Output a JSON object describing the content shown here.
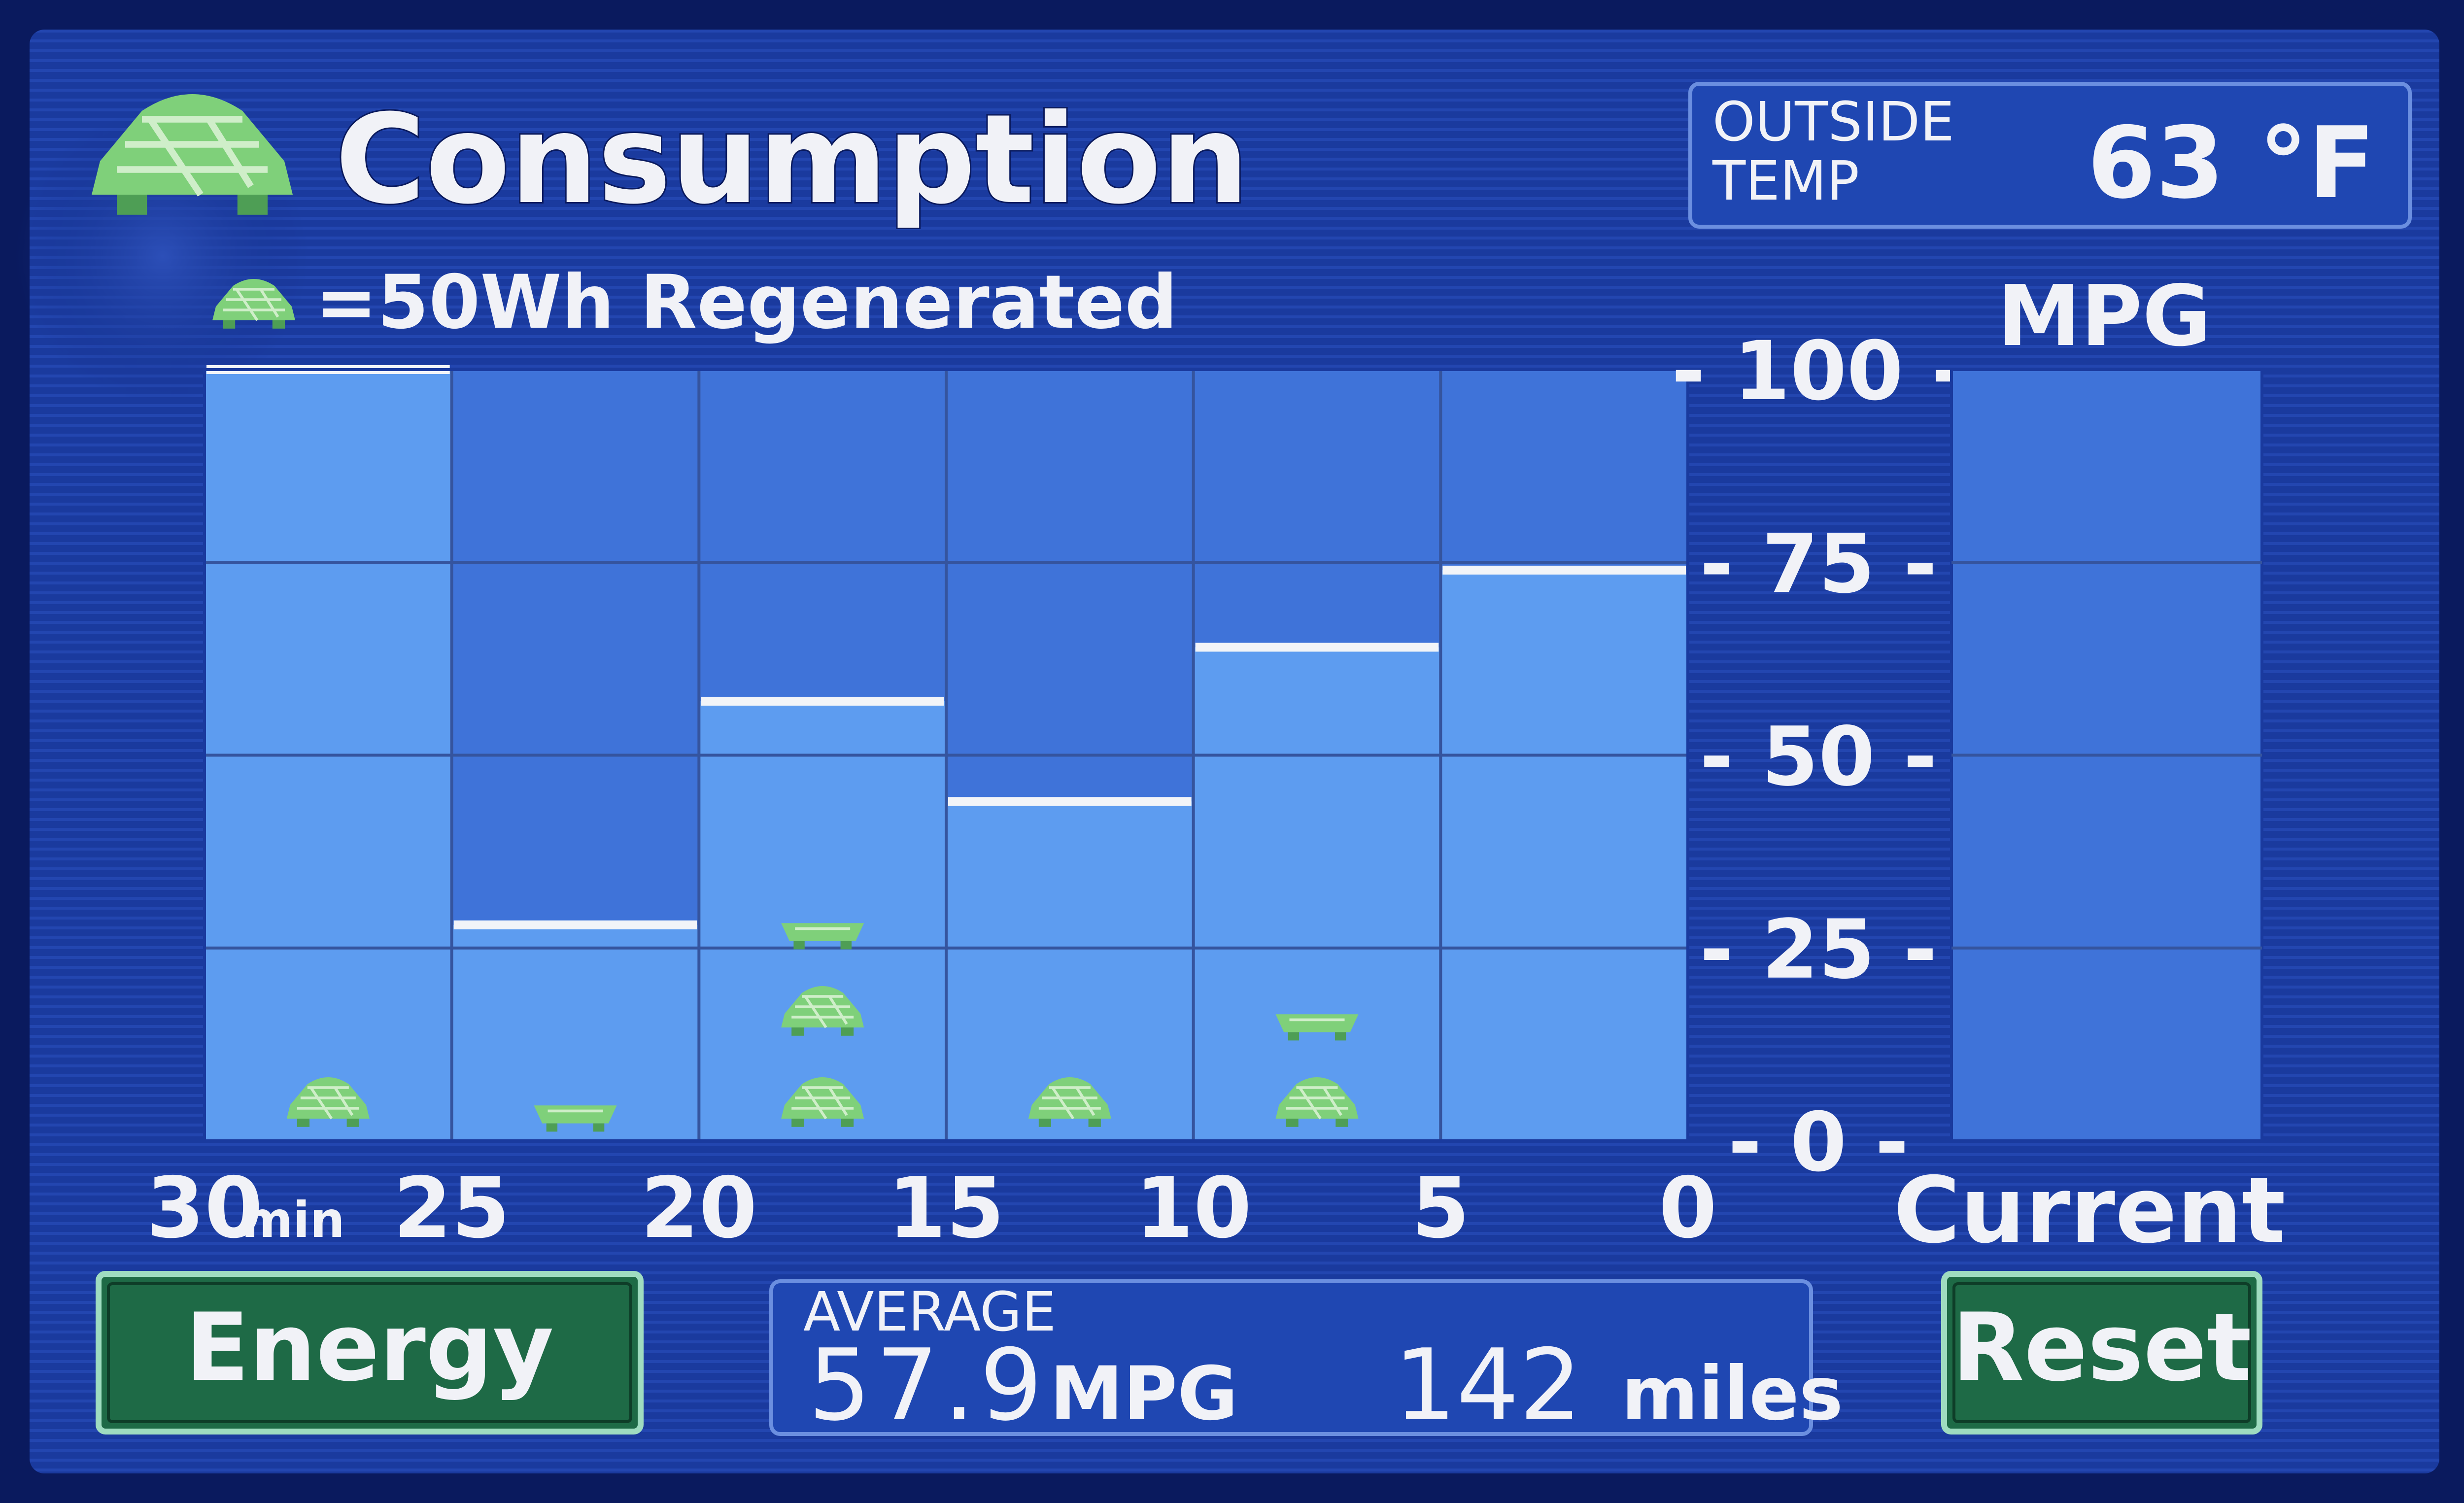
{
  "header": {
    "title": "Consumption",
    "legend": "=50Wh Regenerated",
    "outside_label_1": "OUTSIDE",
    "outside_label_2": "TEMP",
    "outside_value": "63 °F"
  },
  "chart_data": {
    "type": "bar",
    "categories": [
      "30-25",
      "25-20",
      "20-15",
      "15-10",
      "10-5",
      "5-0"
    ],
    "values": [
      100,
      28,
      57,
      44,
      64,
      74
    ],
    "regen_icons": [
      1,
      0.5,
      2.5,
      1,
      1.5,
      0
    ],
    "current_value": 0,
    "ylabel": "MPG",
    "ylim": [
      0,
      100
    ],
    "y_ticks": [
      100,
      75,
      50,
      25,
      0
    ],
    "x_ticks": [
      "30",
      "25",
      "20",
      "15",
      "10",
      "5",
      "0"
    ],
    "x_unit": "min",
    "current_label": "Current"
  },
  "footer": {
    "energy_label": "Energy",
    "average_label": "AVERAGE",
    "average_value": "57.9",
    "average_unit": "MPG",
    "miles_value": "142",
    "miles_unit": "miles",
    "reset_label": "Reset"
  },
  "colors": {
    "background": "#0a1a5e",
    "plot_bg": "#3f73d9",
    "bar_fill": "#5d9cf0",
    "bar_cap": "#f2f4f8",
    "button_green": "#1e6a46",
    "leaf_green": "#7fd07a",
    "text": "#f1f2f7"
  }
}
